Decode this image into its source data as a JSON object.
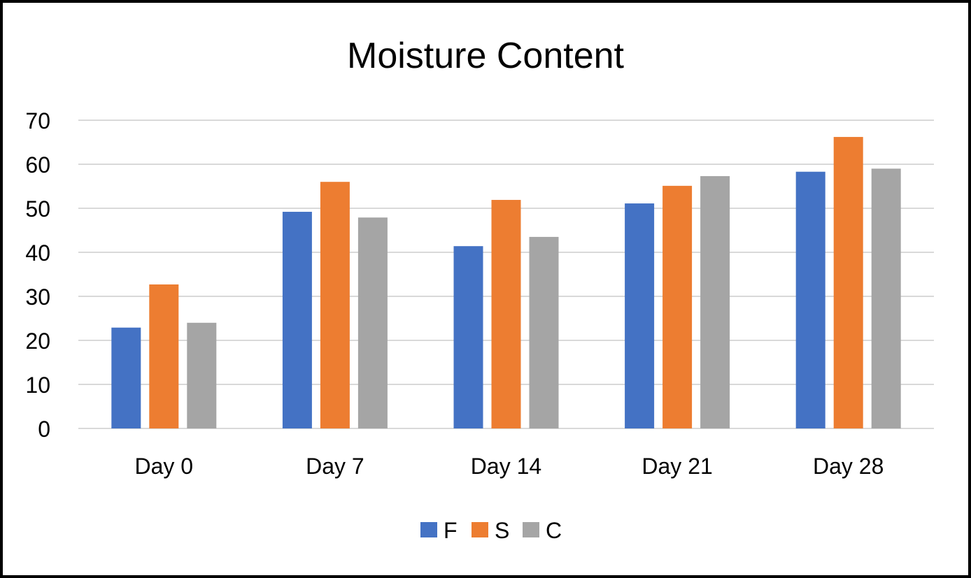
{
  "chart_data": {
    "type": "bar",
    "title": "Moisture Content",
    "xlabel": "",
    "ylabel": "",
    "categories": [
      "Day 0",
      "Day 7",
      "Day 14",
      "Day 21",
      "Day 28"
    ],
    "series": [
      {
        "name": "F",
        "color": "#4472C4",
        "values": [
          22.9,
          49.2,
          41.4,
          51.1,
          58.3
        ]
      },
      {
        "name": "S",
        "color": "#ED7D31",
        "values": [
          32.7,
          56.0,
          51.9,
          55.1,
          66.2
        ]
      },
      {
        "name": "C",
        "color": "#A5A5A5",
        "values": [
          24.0,
          47.9,
          43.5,
          57.3,
          59.0
        ]
      }
    ],
    "ylim": [
      0,
      70
    ],
    "yticks": [
      0,
      10,
      20,
      30,
      40,
      50,
      60,
      70
    ],
    "grid": true,
    "legend": "bottom"
  }
}
